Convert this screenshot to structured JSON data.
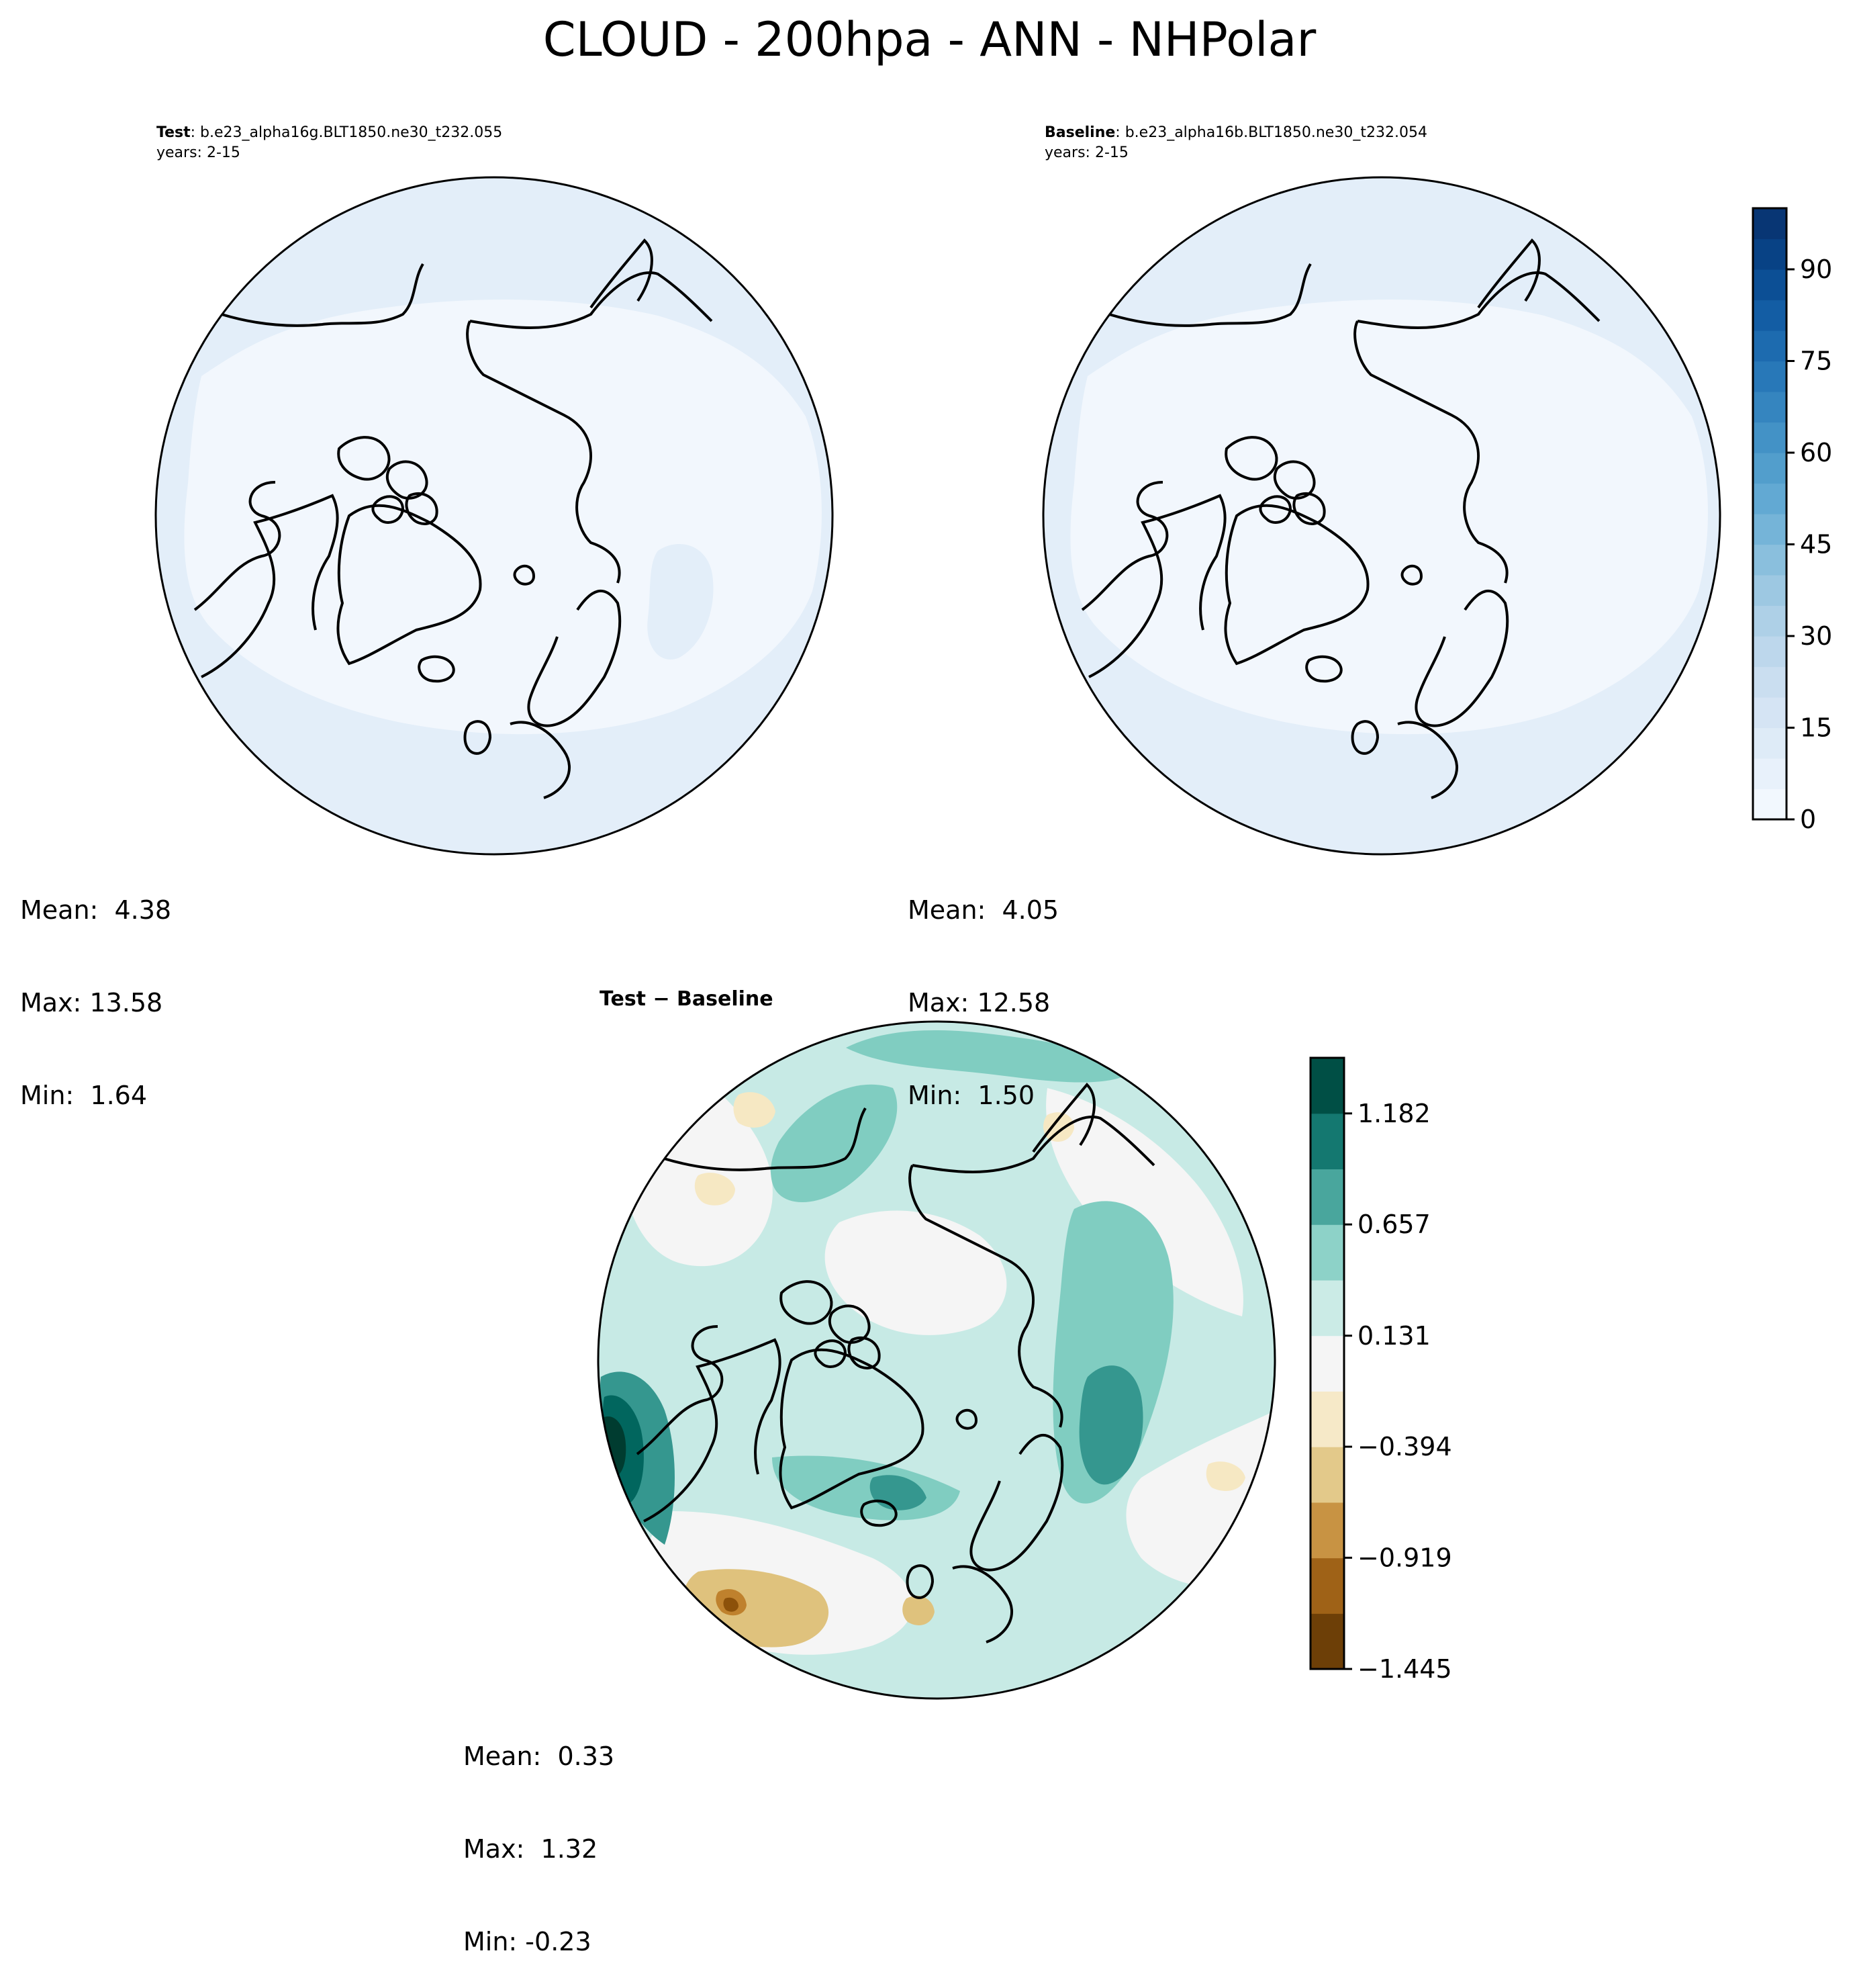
{
  "title": "CLOUD - 200hpa - ANN - NHPolar",
  "panels": {
    "test": {
      "label": "Test",
      "case": ": b.e23_alpha16g.BLT1850.ne30_t232.055",
      "years": "years: 2-15",
      "stats": {
        "mean": "Mean:  4.38",
        "max": "Max: 13.58",
        "min": "Min:  1.64"
      }
    },
    "baseline": {
      "label": "Baseline",
      "case": ": b.e23_alpha16b.BLT1850.ne30_t232.054",
      "years": "years: 2-15",
      "stats": {
        "mean": "Mean:  4.05",
        "max": "Max: 12.58",
        "min": "Min:  1.50"
      }
    },
    "diff": {
      "title": "Test − Baseline",
      "stats": {
        "mean": "Mean:  0.33",
        "max": "Max:  1.32",
        "min": "Min: -0.23"
      }
    }
  },
  "colorbars": {
    "main": {
      "colormap": "Blues",
      "range": [
        0,
        100
      ],
      "ticks": [
        "0",
        "15",
        "30",
        "45",
        "60",
        "75",
        "90"
      ],
      "tick_values": [
        0,
        15,
        30,
        45,
        60,
        75,
        90
      ],
      "colors": [
        "#f7fbff",
        "#e3eef9",
        "#d0e1f2",
        "#b7d4ea",
        "#94c4df",
        "#6aaed6",
        "#4a98c9",
        "#2e7ebc",
        "#1764ab",
        "#08488e",
        "#08306b"
      ]
    },
    "diff": {
      "colormap": "BrBG",
      "ticks": [
        "1.182",
        "0.657",
        "0.131",
        "−0.394",
        "−0.919",
        "−1.445"
      ],
      "tick_values": [
        1.182,
        0.657,
        0.131,
        -0.394,
        -0.919,
        -1.445
      ],
      "colors": [
        "#543005",
        "#8c510a",
        "#bf812d",
        "#dfc27d",
        "#f6e8c3",
        "#f5f5f5",
        "#c7eae5",
        "#80cdc1",
        "#35978f",
        "#01665e",
        "#003c30"
      ]
    }
  }
}
